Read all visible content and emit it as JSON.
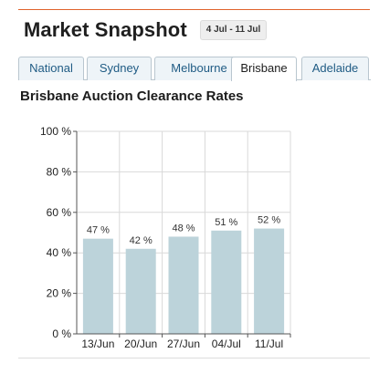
{
  "header": {
    "title": "Market Snapshot",
    "date_range": "4 Jul - 11 Jul"
  },
  "tabs": [
    {
      "label": "National",
      "active": false
    },
    {
      "label": "Sydney",
      "active": false
    },
    {
      "label": "Melbourne",
      "active": false
    },
    {
      "label": "Brisbane",
      "active": true
    },
    {
      "label": "Adelaide",
      "active": false
    }
  ],
  "chart_title": "Brisbane Auction Clearance Rates",
  "colors": {
    "accent_rule": "#e0632c",
    "bar_fill": "#bcd3da",
    "tab_text": "#1f5b84"
  },
  "chart_data": {
    "type": "bar",
    "title": "Brisbane Auction Clearance Rates",
    "categories": [
      "13/Jun",
      "20/Jun",
      "27/Jun",
      "04/Jul",
      "11/Jul"
    ],
    "values": [
      47,
      42,
      48,
      51,
      52
    ],
    "value_labels": [
      "47 %",
      "42 %",
      "48 %",
      "51 %",
      "52 %"
    ],
    "y_ticks": [
      0,
      20,
      40,
      60,
      80,
      100
    ],
    "y_tick_labels": [
      "0 %",
      "20 %",
      "40 %",
      "60 %",
      "80 %",
      "100 %"
    ],
    "ylim": [
      0,
      100
    ],
    "grid": true,
    "xlabel": "",
    "ylabel": ""
  }
}
